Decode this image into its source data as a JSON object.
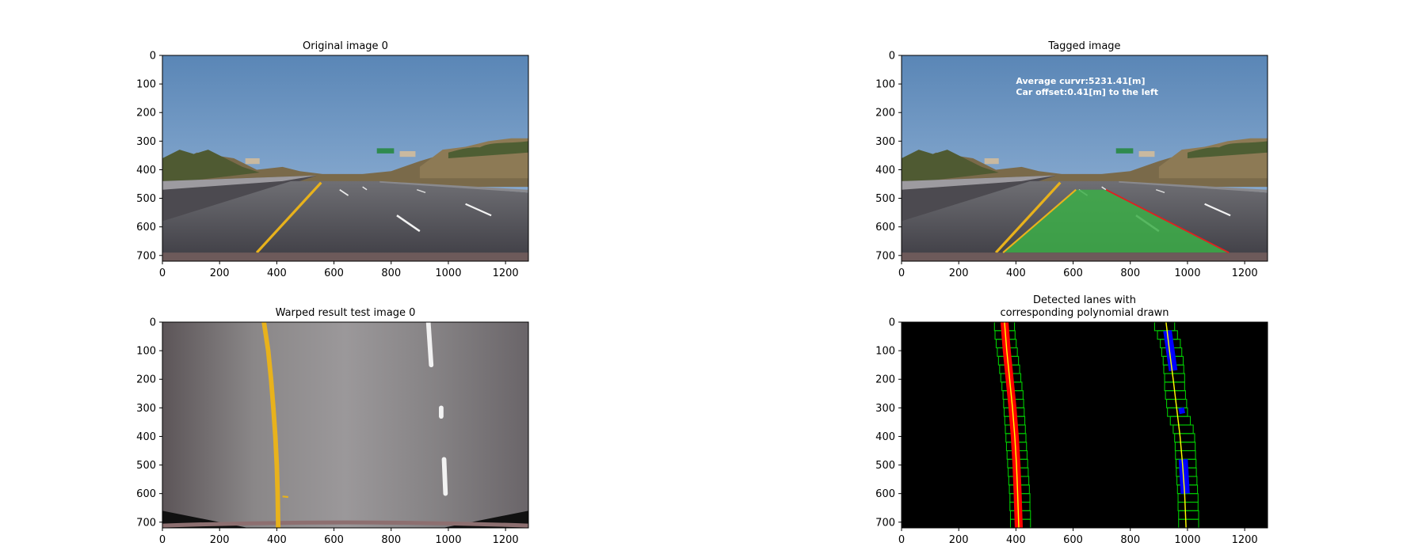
{
  "chart_data": [
    {
      "type": "image",
      "title": "Original image 0",
      "xticks": [
        0,
        200,
        400,
        600,
        800,
        1000,
        1200
      ],
      "yticks": [
        0,
        100,
        200,
        300,
        400,
        500,
        600,
        700
      ],
      "xlim": [
        0,
        1280
      ],
      "ylim": [
        720,
        0
      ],
      "image": "dashcam-highway-road",
      "lane_markings": {
        "left_line_color": "#e8b21c",
        "right_dashes": [
          [
            [
              620,
              470
            ],
            [
              650,
              490
            ]
          ],
          [
            [
              810,
              500
            ],
            [
              860,
              530
            ]
          ],
          [
            [
              820,
              560
            ],
            [
              900,
              615
            ]
          ],
          [
            [
              1060,
              520
            ],
            [
              1150,
              560
            ]
          ]
        ]
      }
    },
    {
      "type": "image",
      "title": "Tagged image",
      "xticks": [
        0,
        200,
        400,
        600,
        800,
        1000,
        1200
      ],
      "yticks": [
        0,
        100,
        200,
        300,
        400,
        500,
        600,
        700
      ],
      "xlim": [
        0,
        1280
      ],
      "ylim": [
        720,
        0
      ],
      "image": "dashcam-highway-road-with-lane-overlay",
      "annotations": [
        "Average curvr:5231.41[m]",
        "Car offset:0.41[m] to the left"
      ],
      "lane_area": {
        "color": "#3cae48",
        "polygon": [
          [
            355,
            690
          ],
          [
            610,
            470
          ],
          [
            715,
            470
          ],
          [
            1145,
            690
          ]
        ]
      },
      "right_edge_color": "#e02020"
    },
    {
      "type": "image",
      "title": "Warped result test image 0",
      "xticks": [
        0,
        200,
        400,
        600,
        800,
        1000,
        1200
      ],
      "yticks": [
        0,
        100,
        200,
        300,
        400,
        500,
        600,
        700
      ],
      "xlim": [
        0,
        1280
      ],
      "ylim": [
        720,
        0
      ],
      "image": "birds-eye-warped-road",
      "left_lane_x": [
        [
          0,
          355
        ],
        [
          100,
          370
        ],
        [
          200,
          380
        ],
        [
          300,
          388
        ],
        [
          400,
          395
        ],
        [
          500,
          400
        ],
        [
          600,
          403
        ],
        [
          720,
          405
        ]
      ],
      "right_dashes": [
        [
          [
            0,
            930
          ],
          [
            150,
            940
          ]
        ],
        [
          [
            300,
            975
          ],
          [
            330,
            975
          ]
        ],
        [
          [
            480,
            985
          ],
          [
            600,
            990
          ]
        ]
      ]
    },
    {
      "type": "image",
      "title": "Detected lanes with\ncorresponding polynomial drawn",
      "xticks": [
        0,
        200,
        400,
        600,
        800,
        1000,
        1200
      ],
      "yticks": [
        0,
        100,
        200,
        300,
        400,
        500,
        600,
        700
      ],
      "xlim": [
        0,
        1280
      ],
      "ylim": [
        720,
        0
      ],
      "image": "binary-lane-detection-sliding-windows",
      "left_fit_x": [
        [
          0,
          360
        ],
        [
          100,
          368
        ],
        [
          200,
          378
        ],
        [
          300,
          388
        ],
        [
          400,
          396
        ],
        [
          500,
          402
        ],
        [
          600,
          406
        ],
        [
          720,
          410
        ]
      ],
      "right_fit_x": [
        [
          0,
          925
        ],
        [
          100,
          937
        ],
        [
          200,
          950
        ],
        [
          300,
          962
        ],
        [
          400,
          974
        ],
        [
          500,
          983
        ],
        [
          600,
          990
        ],
        [
          720,
          995
        ]
      ],
      "left_windows_x": [
        [
          0,
          360
        ],
        [
          30,
          362
        ],
        [
          60,
          366
        ],
        [
          90,
          370
        ],
        [
          120,
          374
        ],
        [
          150,
          378
        ],
        [
          180,
          382
        ],
        [
          210,
          386
        ],
        [
          240,
          390
        ],
        [
          270,
          392
        ],
        [
          300,
          394
        ],
        [
          330,
          396
        ],
        [
          360,
          398
        ],
        [
          390,
          400
        ],
        [
          420,
          402
        ],
        [
          450,
          404
        ],
        [
          480,
          406
        ],
        [
          510,
          408
        ],
        [
          540,
          410
        ],
        [
          570,
          412
        ],
        [
          600,
          414
        ],
        [
          630,
          414
        ],
        [
          660,
          416
        ],
        [
          690,
          416
        ]
      ],
      "right_windows_x": [
        [
          0,
          920
        ],
        [
          30,
          930
        ],
        [
          60,
          940
        ],
        [
          90,
          945
        ],
        [
          120,
          950
        ],
        [
          150,
          952
        ],
        [
          180,
          955
        ],
        [
          210,
          955
        ],
        [
          240,
          958
        ],
        [
          270,
          962
        ],
        [
          300,
          965
        ],
        [
          330,
          975
        ],
        [
          360,
          985
        ],
        [
          390,
          990
        ],
        [
          420,
          992
        ],
        [
          450,
          993
        ],
        [
          480,
          995
        ],
        [
          510,
          996
        ],
        [
          540,
          998
        ],
        [
          570,
          1000
        ],
        [
          600,
          1002
        ],
        [
          630,
          1002
        ],
        [
          660,
          1004
        ],
        [
          690,
          1004
        ]
      ],
      "colors": {
        "left_pixels": "#ff0000",
        "right_pixels": "#0000ff",
        "fit": "#ffff00",
        "windows": "#00cc00"
      }
    }
  ]
}
